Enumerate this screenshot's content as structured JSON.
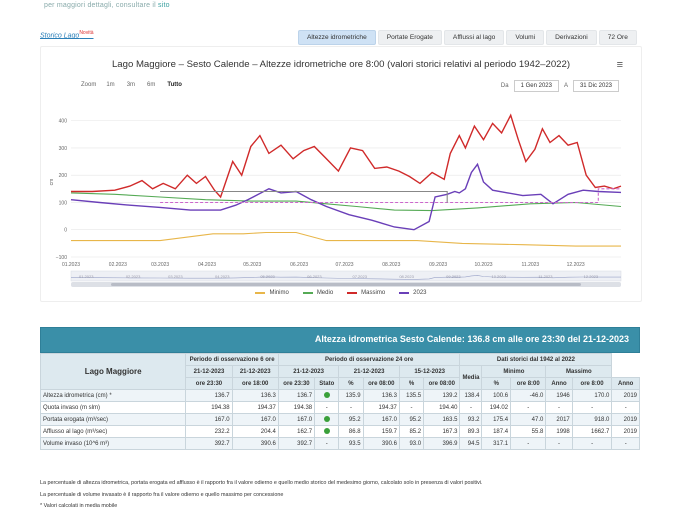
{
  "topnote": {
    "prefix": "per maggiori dettagli, consultare il",
    "link": "sito"
  },
  "brand": {
    "label": "Storico Lago",
    "badge": "Novità"
  },
  "tabs": [
    {
      "label": "Altezze idrometriche",
      "active": true
    },
    {
      "label": "Portate Erogate",
      "active": false
    },
    {
      "label": "Afflussi al lago",
      "active": false
    },
    {
      "label": "Volumi",
      "active": false
    },
    {
      "label": "Derivazioni",
      "active": false
    },
    {
      "label": "72 Ore",
      "active": false
    }
  ],
  "chart_data": {
    "type": "line",
    "title": "Lago Maggiore – Sesto Calende – Altezze idrometriche ore 8:00 (valori storici relativi al periodo 1942–2022)",
    "ylabel": "cm",
    "ylim": [
      -100,
      450
    ],
    "yticks": [
      -100,
      0,
      100,
      200,
      300,
      400
    ],
    "yticklabels": [
      "−100",
      "0",
      "100",
      "200",
      "300",
      "400"
    ],
    "xticks": [
      "01.2023",
      "02.2023",
      "03.2023",
      "04.2023",
      "05.2023",
      "06.2023",
      "07.2023",
      "08.2023",
      "09.2023",
      "10.2023",
      "11.2023",
      "12.2023"
    ],
    "x_days": [
      1,
      32,
      60,
      91,
      121,
      152,
      182,
      213,
      244,
      274,
      305,
      335,
      365
    ],
    "series": [
      {
        "name": "Minimo",
        "color": "#e8b64a",
        "dash": false,
        "points": [
          [
            1,
            -40
          ],
          [
            30,
            -40
          ],
          [
            60,
            -40
          ],
          [
            95,
            -15
          ],
          [
            115,
            -15
          ],
          [
            130,
            -10
          ],
          [
            150,
            -10
          ],
          [
            170,
            -40
          ],
          [
            200,
            -40
          ],
          [
            230,
            -40
          ],
          [
            260,
            -50
          ],
          [
            300,
            -55
          ],
          [
            335,
            -60
          ],
          [
            365,
            -60
          ]
        ]
      },
      {
        "name": "Medio",
        "color": "#55aa55",
        "dash": false,
        "points": [
          [
            1,
            135
          ],
          [
            30,
            130
          ],
          [
            60,
            120
          ],
          [
            90,
            110
          ],
          [
            120,
            105
          ],
          [
            150,
            105
          ],
          [
            170,
            95
          ],
          [
            190,
            85
          ],
          [
            215,
            72
          ],
          [
            240,
            70
          ],
          [
            270,
            80
          ],
          [
            305,
            95
          ],
          [
            335,
            100
          ],
          [
            365,
            85
          ]
        ]
      },
      {
        "name": "Massimo",
        "color": "#d02a2a",
        "dash": false,
        "points": [
          [
            1,
            140
          ],
          [
            15,
            140
          ],
          [
            30,
            145
          ],
          [
            40,
            160
          ],
          [
            48,
            180
          ],
          [
            55,
            150
          ],
          [
            62,
            170
          ],
          [
            70,
            150
          ],
          [
            78,
            200
          ],
          [
            84,
            170
          ],
          [
            90,
            195
          ],
          [
            96,
            145
          ],
          [
            100,
            120
          ],
          [
            108,
            250
          ],
          [
            114,
            200
          ],
          [
            120,
            305
          ],
          [
            126,
            345
          ],
          [
            132,
            280
          ],
          [
            140,
            310
          ],
          [
            148,
            260
          ],
          [
            155,
            290
          ],
          [
            162,
            305
          ],
          [
            170,
            260
          ],
          [
            178,
            215
          ],
          [
            186,
            300
          ],
          [
            194,
            290
          ],
          [
            202,
            225
          ],
          [
            210,
            230
          ],
          [
            218,
            215
          ],
          [
            225,
            195
          ],
          [
            232,
            170
          ],
          [
            240,
            210
          ],
          [
            248,
            185
          ],
          [
            252,
            280
          ],
          [
            258,
            345
          ],
          [
            262,
            300
          ],
          [
            268,
            380
          ],
          [
            274,
            330
          ],
          [
            280,
            390
          ],
          [
            286,
            355
          ],
          [
            292,
            420
          ],
          [
            297,
            330
          ],
          [
            302,
            250
          ],
          [
            308,
            295
          ],
          [
            313,
            370
          ],
          [
            318,
            320
          ],
          [
            324,
            345
          ],
          [
            330,
            310
          ],
          [
            336,
            320
          ],
          [
            342,
            200
          ],
          [
            348,
            155
          ],
          [
            354,
            160
          ],
          [
            360,
            150
          ],
          [
            365,
            160
          ]
        ]
      },
      {
        "name": "2023",
        "color": "#6a3fb8",
        "dash": false,
        "points": [
          [
            1,
            110
          ],
          [
            20,
            100
          ],
          [
            40,
            90
          ],
          [
            60,
            82
          ],
          [
            80,
            72
          ],
          [
            100,
            72
          ],
          [
            110,
            90
          ],
          [
            118,
            110
          ],
          [
            125,
            130
          ],
          [
            132,
            150
          ],
          [
            140,
            135
          ],
          [
            150,
            140
          ],
          [
            160,
            110
          ],
          [
            170,
            85
          ],
          [
            185,
            55
          ],
          [
            200,
            35
          ],
          [
            215,
            10
          ],
          [
            228,
            0
          ],
          [
            238,
            30
          ],
          [
            242,
            120
          ],
          [
            250,
            130
          ],
          [
            255,
            140
          ],
          [
            258,
            135
          ],
          [
            262,
            150
          ],
          [
            266,
            210
          ],
          [
            270,
            240
          ],
          [
            274,
            175
          ],
          [
            280,
            145
          ],
          [
            290,
            135
          ],
          [
            300,
            125
          ],
          [
            312,
            130
          ],
          [
            320,
            95
          ],
          [
            330,
            130
          ],
          [
            340,
            145
          ],
          [
            350,
            140
          ],
          [
            365,
            137
          ]
        ]
      },
      {
        "name": "",
        "color": "#cc66cc",
        "dash": true,
        "points": [
          [
            60,
            100
          ],
          [
            110,
            100
          ],
          [
            190,
            100
          ],
          [
            350,
            100
          ],
          [
            350,
            150
          ],
          [
            365,
            150
          ]
        ]
      },
      {
        "name": "",
        "color": "#888888",
        "dash": false,
        "points": [
          [
            60,
            140
          ],
          [
            100,
            140
          ],
          [
            150,
            140
          ],
          [
            160,
            140
          ],
          [
            250,
            140
          ],
          [
            250,
            100
          ]
        ]
      }
    ],
    "navigator_ticks": [
      "01.2023",
      "02.2023",
      "03.2023",
      "04.2023",
      "05.2023",
      "06.2023",
      "07.2023",
      "08.2023",
      "09.2023",
      "10.2023",
      "11.2023",
      "12.2023"
    ]
  },
  "zoom": {
    "label": "Zoom",
    "options": [
      "1m",
      "3m",
      "6m",
      "Tutto"
    ],
    "selected": "Tutto"
  },
  "range": {
    "from_label": "Da",
    "from": "1 Gen 2023",
    "to_label": "A",
    "to": "31 Dic 2023"
  },
  "table": {
    "banner": "Altezza idrometrica Sesto Calende: 136.8 cm alle ore 23:30 del 21-12-2023",
    "lake": "Lago Maggiore",
    "group6": "Periodo di osservazione 6 ore",
    "group24": "Periodo di osservazione 24 ore",
    "groupHist": "Dati storici dal 1942 al 2022",
    "dates": {
      "d1": "21-12-2023",
      "d2": "21-12-2023",
      "d3": "21-12-2023",
      "d4": "21-12-2023",
      "d5": "15-12-2023"
    },
    "hdr_min": "Minimo",
    "hdr_max": "Massimo",
    "sub": {
      "h1": "ore 23:30",
      "h2": "ore 18:00",
      "h3": "ore 23:30",
      "stato": "Stato",
      "pct": "%",
      "h4": "ore 08:00",
      "h5": "ore 08:00",
      "media": "Media",
      "h6": "ore 8:00",
      "anno": "Anno",
      "h7": "ore 8:00"
    },
    "rows": [
      {
        "label": "Altezza idrometrica (cm) *",
        "v": [
          "136.7",
          "136.3",
          "136.7",
          "●",
          "135.9",
          "136.3",
          "135.5",
          "139.2",
          "138.4",
          "100.6",
          "-46.0",
          "1946",
          "170.0",
          "2019"
        ]
      },
      {
        "label": "Quota invaso (m slm)",
        "v": [
          "194.38",
          "194.37",
          "194.38",
          "-",
          "-",
          "194.37",
          "-",
          "194.40",
          "-",
          "194.02",
          "-",
          "-",
          "-",
          "-"
        ]
      },
      {
        "label": "Portata erogata (m³/sec)",
        "v": [
          "167.0",
          "167.0",
          "167.0",
          "●",
          "95.2",
          "167.0",
          "95.2",
          "163.5",
          "93.2",
          "175.4",
          "47.0",
          "2017",
          "918.0",
          "2019"
        ]
      },
      {
        "label": "Afflusso al lago (m³/sec)",
        "v": [
          "232.2",
          "204.4",
          "162.7",
          "●",
          "86.8",
          "159.7",
          "85.2",
          "167.3",
          "89.3",
          "187.4",
          "55.8",
          "1998",
          "1662.7",
          "2019"
        ]
      },
      {
        "label": "Volume invaso (10^6 m³)",
        "v": [
          "392.7",
          "390.6",
          "392.7",
          "-",
          "93.5",
          "390.6",
          "93.0",
          "396.9",
          "94.5",
          "317.1",
          "-",
          "-",
          "-",
          "-"
        ]
      }
    ]
  },
  "notes": [
    "La percentuale di altezza idrometrica, portata erogata ed afflusso è il rapporto fra il valore odierno e quello medio storico del medesimo giorno, calcolato solo in presenza di valori positivi.",
    "La percentuale di volume invasato è il rapporto fra il valore odierno e quello massimo per concessione",
    "* Valori calcolati in media mobile"
  ]
}
